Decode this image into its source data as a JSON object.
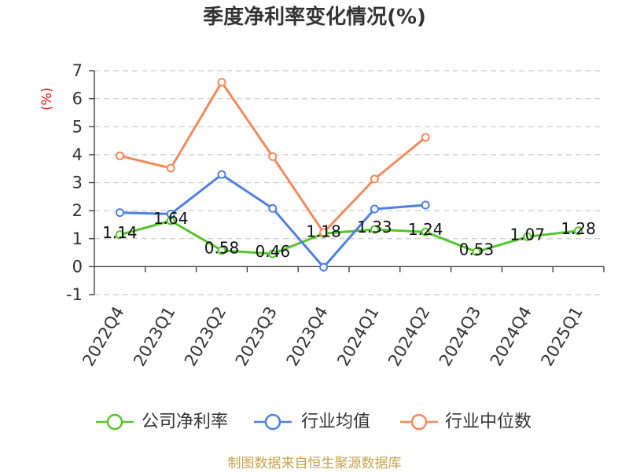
{
  "chart_data": {
    "type": "line",
    "title": "季度净利率变化情况(%)",
    "ylabel": "(%)",
    "ylim": [
      -1,
      7
    ],
    "yticks": [
      7,
      6,
      5,
      4,
      3,
      2,
      1,
      0,
      -1
    ],
    "grid": true,
    "legend_position": "bottom",
    "categories": [
      "2022Q4",
      "2023Q1",
      "2023Q2",
      "2023Q3",
      "2023Q4",
      "2024Q1",
      "2024Q2",
      "2024Q3",
      "2024Q4",
      "2025Q1"
    ],
    "series": [
      {
        "name": "公司净利率",
        "color": "#56c42b",
        "data_labels": true,
        "values": [
          1.14,
          1.64,
          0.58,
          0.46,
          1.18,
          1.33,
          1.24,
          0.53,
          1.07,
          1.28
        ]
      },
      {
        "name": "行业均值",
        "color": "#4e80e0",
        "data_labels": false,
        "values": [
          1.93,
          1.88,
          3.29,
          2.08,
          -0.02,
          2.06,
          2.2,
          null,
          null,
          null
        ]
      },
      {
        "name": "行业中位数",
        "color": "#f4895a",
        "data_labels": false,
        "values": [
          3.96,
          3.52,
          6.59,
          3.93,
          1.22,
          3.13,
          4.62,
          null,
          null,
          null
        ]
      }
    ]
  },
  "footer": "制图数据来自恒生聚源数据库",
  "colors": {
    "axis_title": "#e00000",
    "footer": "#c8a24b"
  }
}
